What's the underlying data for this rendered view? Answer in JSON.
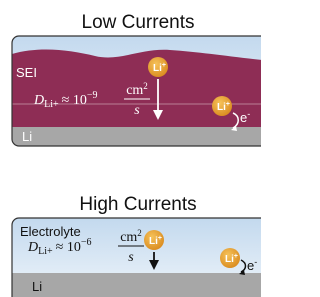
{
  "panels": [
    {
      "title": "Low Currents",
      "layer_label": "SEI",
      "electrode_label": "Li",
      "diffusion": {
        "symbol": "D",
        "subscript": "Li+",
        "relation": "≈ 10",
        "exponent": "−9",
        "numerator": "cm",
        "numerator_power": "2",
        "denominator": "s"
      },
      "ion_label": "Li",
      "ion_charge": "+",
      "electron_label": "e",
      "electron_charge": "-"
    },
    {
      "title": "High Currents",
      "layer_label": "Electrolyte",
      "electrode_label": "Li",
      "diffusion": {
        "symbol": "D",
        "subscript": "Li+",
        "relation": "≈ 10",
        "exponent": "−6",
        "numerator": "cm",
        "numerator_power": "2",
        "denominator": "s"
      },
      "ion_label": "Li",
      "ion_charge": "+",
      "electron_label": "e",
      "electron_charge": "-"
    }
  ]
}
